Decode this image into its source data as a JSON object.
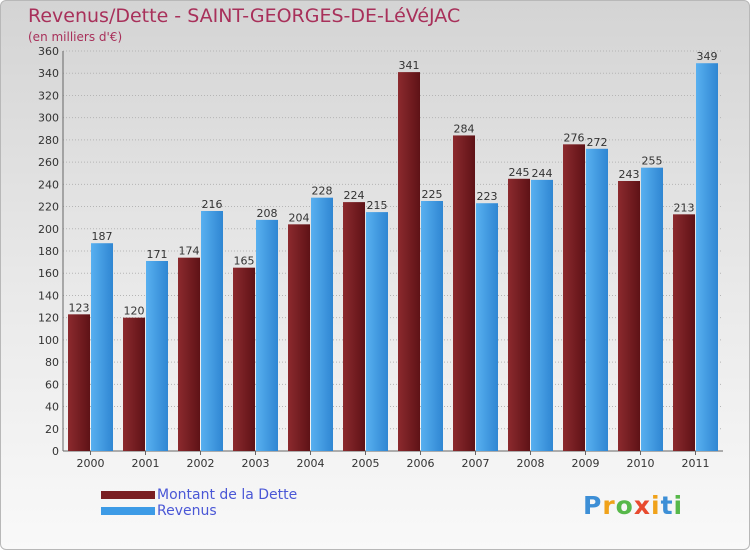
{
  "chart_data": {
    "type": "bar",
    "title": "Revenus/Dette - SAINT-GEORGES-DE-LéVéJAC",
    "subtitle": "(en milliers d'€)",
    "categories": [
      "2000",
      "2001",
      "2002",
      "2003",
      "2004",
      "2005",
      "2006",
      "2007",
      "2008",
      "2009",
      "2010",
      "2011"
    ],
    "series": [
      {
        "name": "Montant de la Dette",
        "values": [
          123,
          120,
          174,
          165,
          204,
          224,
          341,
          284,
          245,
          276,
          243,
          213
        ],
        "color": "#7a1e22"
      },
      {
        "name": "Revenus",
        "values": [
          187,
          171,
          216,
          208,
          228,
          215,
          225,
          223,
          244,
          272,
          255,
          349
        ],
        "color": "#3d9be6"
      }
    ],
    "ylim": [
      0,
      360
    ],
    "yticks": [
      0,
      20,
      40,
      60,
      80,
      100,
      120,
      140,
      160,
      180,
      200,
      220,
      240,
      260,
      280,
      300,
      320,
      340,
      360
    ],
    "grid": true,
    "legend_position": "bottom-left",
    "xlabel": "",
    "ylabel": ""
  },
  "logo": {
    "letters": [
      {
        "ch": "P",
        "color": "#3d8fd6"
      },
      {
        "ch": "r",
        "color": "#f0a21a"
      },
      {
        "ch": "o",
        "color": "#57b84a"
      },
      {
        "ch": "x",
        "color": "#e84a2e"
      },
      {
        "ch": "i",
        "color": "#f0a21a"
      },
      {
        "ch": "t",
        "color": "#3d8fd6"
      },
      {
        "ch": "i",
        "color": "#57b84a"
      }
    ]
  }
}
